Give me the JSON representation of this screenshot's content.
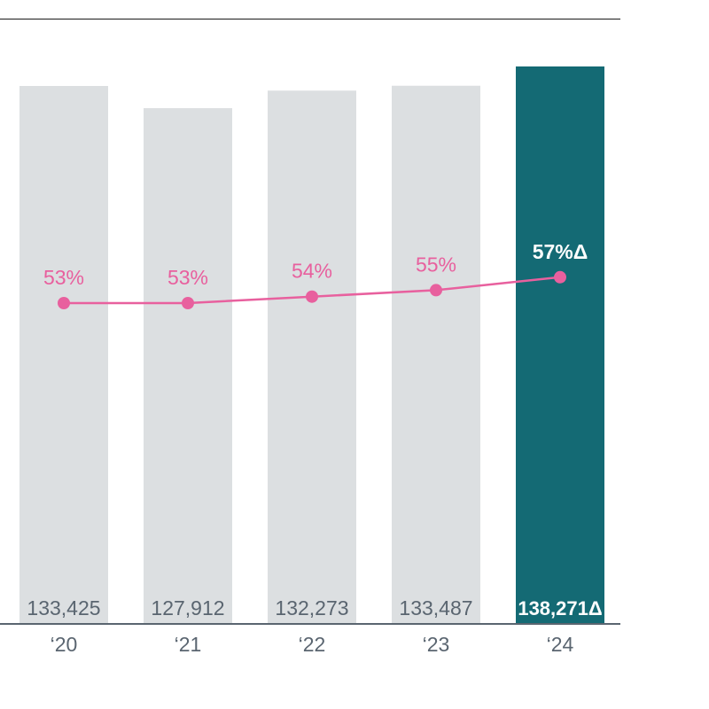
{
  "chart_data": {
    "type": "bar",
    "categories": [
      "‘20",
      "‘21",
      "‘22",
      "‘23",
      "‘24"
    ],
    "series": [
      {
        "type": "bar",
        "values": [
          133425,
          127912,
          132273,
          133487,
          138271
        ],
        "labels": [
          "133,425",
          "127,912",
          "132,273",
          "133,487",
          "138,271Δ"
        ]
      },
      {
        "type": "line",
        "values": [
          53,
          53,
          54,
          55,
          57
        ],
        "labels": [
          "53%",
          "53%",
          "54%",
          "55%",
          "57%Δ"
        ]
      }
    ],
    "highlight_index": 4,
    "colors": {
      "bar": "#dcdfe1",
      "bar_highlight": "#146a74",
      "line": "#e8609e",
      "bar_label": "#5a6570",
      "bar_label_highlight": "#ffffff",
      "axis": "#5a6570",
      "top_rule": "#1a1a1a"
    }
  }
}
